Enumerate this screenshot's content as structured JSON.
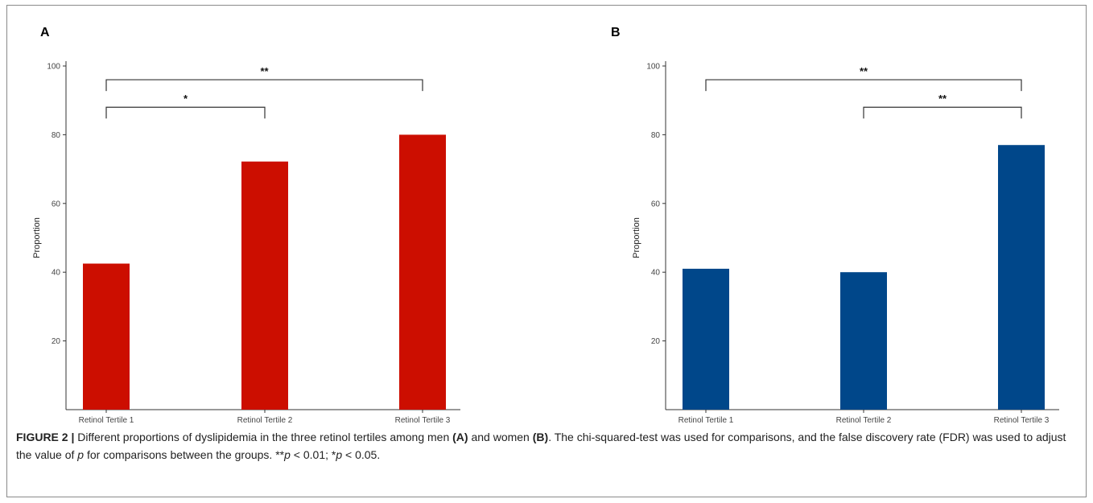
{
  "chart_data": [
    {
      "type": "bar",
      "panel": "A",
      "categories": [
        "Retinol Tertile 1",
        "Retinol Tertile 2",
        "Retinol Tertile 3"
      ],
      "values": [
        42.5,
        72.2,
        80.0
      ],
      "ylabel": "Proportion",
      "ylim": [
        0,
        100
      ],
      "yticks": [
        20,
        40,
        60,
        80,
        100
      ],
      "color": "#cc0e00",
      "grid": false,
      "significance": [
        {
          "from": 0,
          "to": 2,
          "label": "**",
          "level": 96
        },
        {
          "from": 0,
          "to": 1,
          "label": "*",
          "level": 88
        }
      ]
    },
    {
      "type": "bar",
      "panel": "B",
      "categories": [
        "Retinol Tertile 1",
        "Retinol Tertile 2",
        "Retinol Tertile 3"
      ],
      "values": [
        41.0,
        40.0,
        77.0
      ],
      "ylabel": "Proportion",
      "ylim": [
        0,
        100
      ],
      "yticks": [
        20,
        40,
        60,
        80,
        100
      ],
      "color": "#00478a",
      "grid": false,
      "significance": [
        {
          "from": 0,
          "to": 2,
          "label": "**",
          "level": 96
        },
        {
          "from": 1,
          "to": 2,
          "label": "**",
          "level": 88
        }
      ]
    }
  ],
  "caption": {
    "label": "FIGURE 2 |",
    "text1": " Different proportions of dyslipidemia in the three retinol tertiles among men ",
    "paren_a": "(A)",
    "text2": " and women ",
    "paren_b": "(B)",
    "text3": ". The chi-squared-test was used for comparisons, and the false discovery rate (FDR) was used to adjust the value of ",
    "p1": "p",
    "text4": " for comparisons between the groups. **",
    "p2": "p",
    "text5": " < 0.01; *",
    "p3": "p",
    "text6": " < 0.05."
  }
}
